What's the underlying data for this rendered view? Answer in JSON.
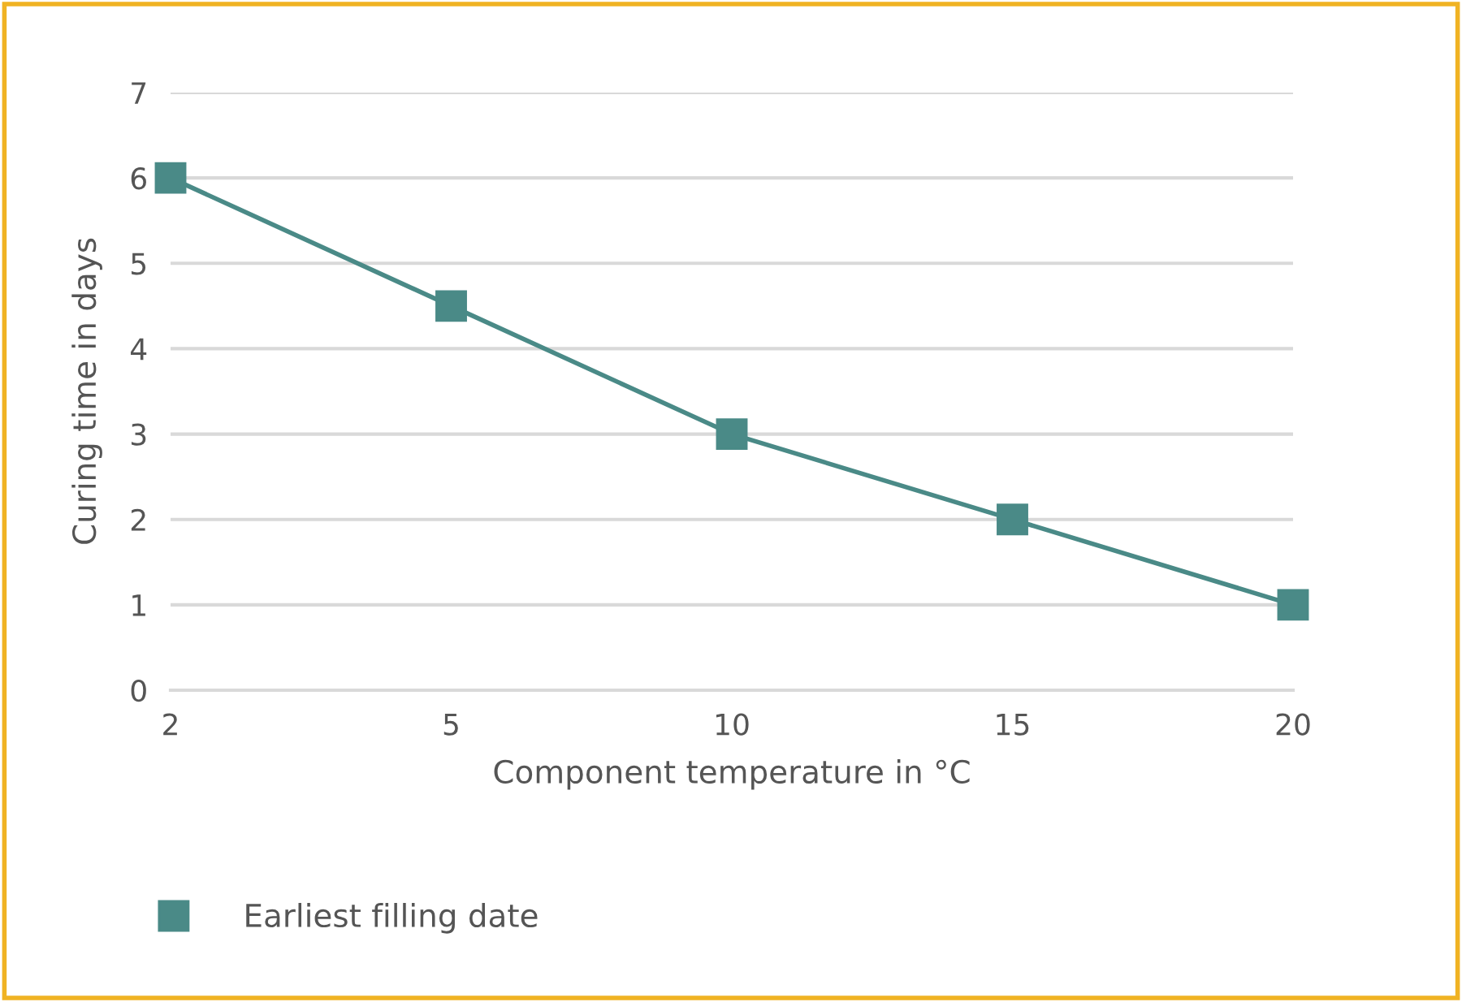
{
  "chart_data": {
    "type": "line",
    "xlabel": "Component temperature in °C",
    "ylabel": "Curing time in days",
    "categories": [
      "2",
      "5",
      "10",
      "15",
      "20"
    ],
    "series": [
      {
        "name": "Earliest filling date",
        "color": "#4a8a87",
        "values": [
          6,
          4.5,
          3,
          2,
          1
        ]
      }
    ],
    "ylim": [
      0,
      7
    ],
    "yticks": [
      0,
      1,
      2,
      3,
      4,
      5,
      6,
      7
    ],
    "grid": "y",
    "legend": "bottom left",
    "marker": "square",
    "line_style": "solid"
  }
}
